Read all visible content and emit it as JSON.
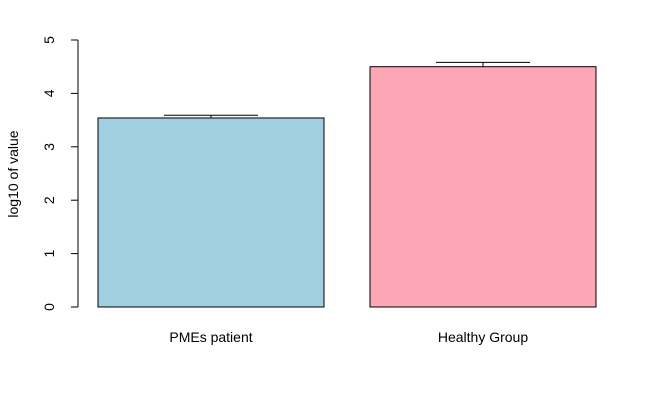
{
  "chart_data": {
    "type": "bar",
    "title": "",
    "xlabel": "",
    "ylabel": "log10 of value",
    "categories": [
      "PMEs patient",
      "Healthy Group"
    ],
    "values": [
      3.54,
      4.5
    ],
    "error_upper": [
      3.59,
      4.58
    ],
    "colors": [
      "#9fcfe1",
      "#fda6b5"
    ],
    "ylim": [
      0,
      5
    ],
    "yticks": [
      0,
      1,
      2,
      3,
      4,
      5
    ],
    "grid": false,
    "legend": "none"
  }
}
